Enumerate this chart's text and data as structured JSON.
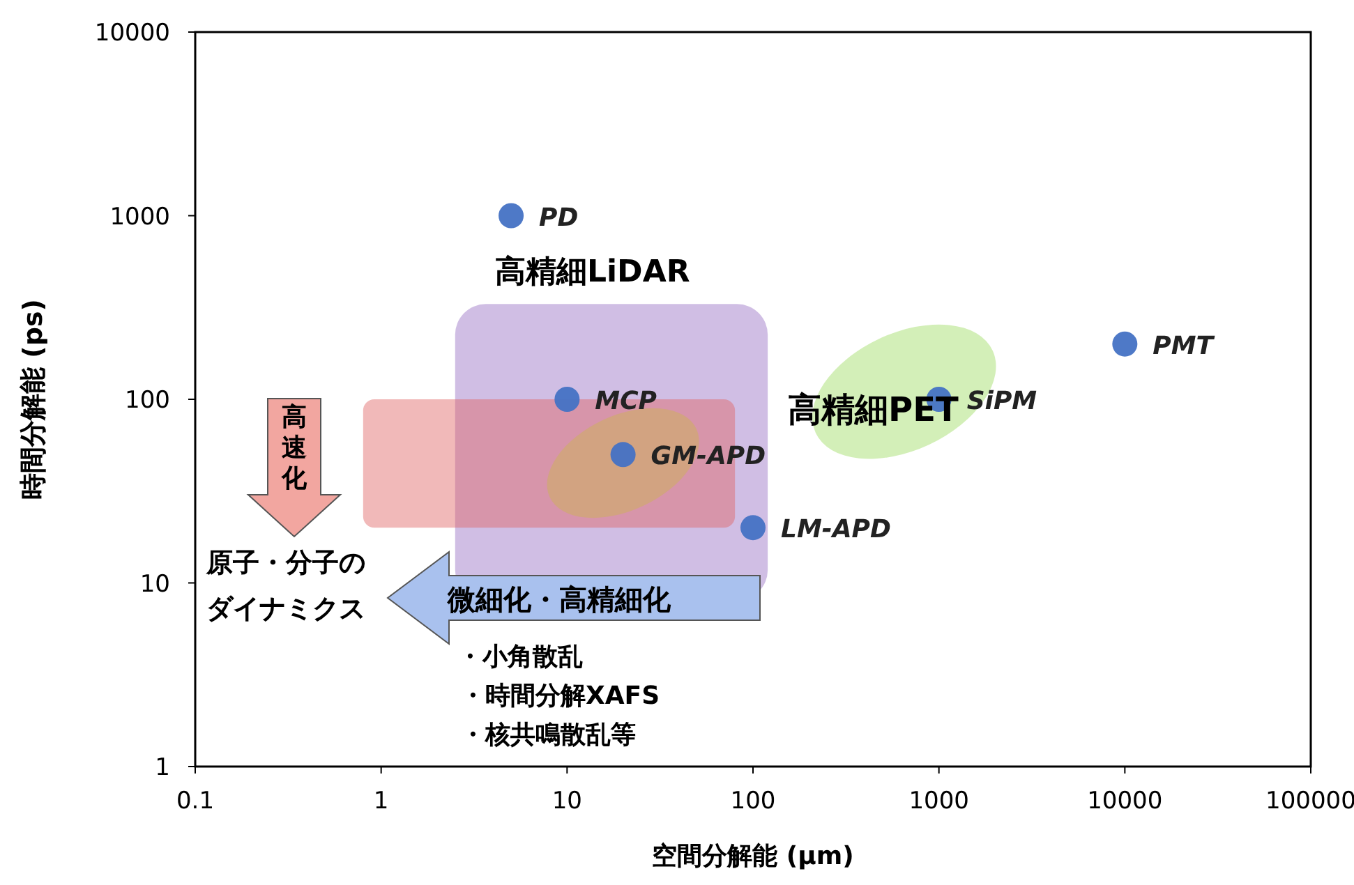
{
  "chart_data": {
    "type": "scatter",
    "xlabel": "空間分解能 (µm)",
    "ylabel": "時間分解能 (ps)",
    "x": [
      5,
      10,
      20,
      100,
      1000,
      10000
    ],
    "values": [
      1000,
      100,
      50,
      20,
      100,
      200
    ],
    "color": "#4472c4",
    "marker": "circle",
    "log": "xy",
    "xlim": [
      0.1,
      100000
    ],
    "ylim": [
      1,
      10000
    ],
    "xticks": [
      0.1,
      1,
      10,
      100,
      1000,
      10000,
      100000
    ],
    "yticks": [
      1,
      10,
      100,
      1000,
      10000
    ],
    "annotations": [
      {
        "text": "PD",
        "x": 5,
        "y": 1000
      },
      {
        "text": "MCP",
        "x": 10,
        "y": 100
      },
      {
        "text": "GM-APD",
        "x": 20,
        "y": 50
      },
      {
        "text": "LM-APD",
        "x": 100,
        "y": 20
      },
      {
        "text": "SiPM",
        "x": 1000,
        "y": 100
      },
      {
        "text": "PMT",
        "x": 10000,
        "y": 200
      },
      "高精細LiDAR",
      "高精細PET",
      "高速化",
      "原子・分子の",
      "ダイナミクス",
      "微細化・高精細化",
      "・小角散乱",
      "・時間分解XAFS",
      "・核共鳴散乱等"
    ]
  }
}
